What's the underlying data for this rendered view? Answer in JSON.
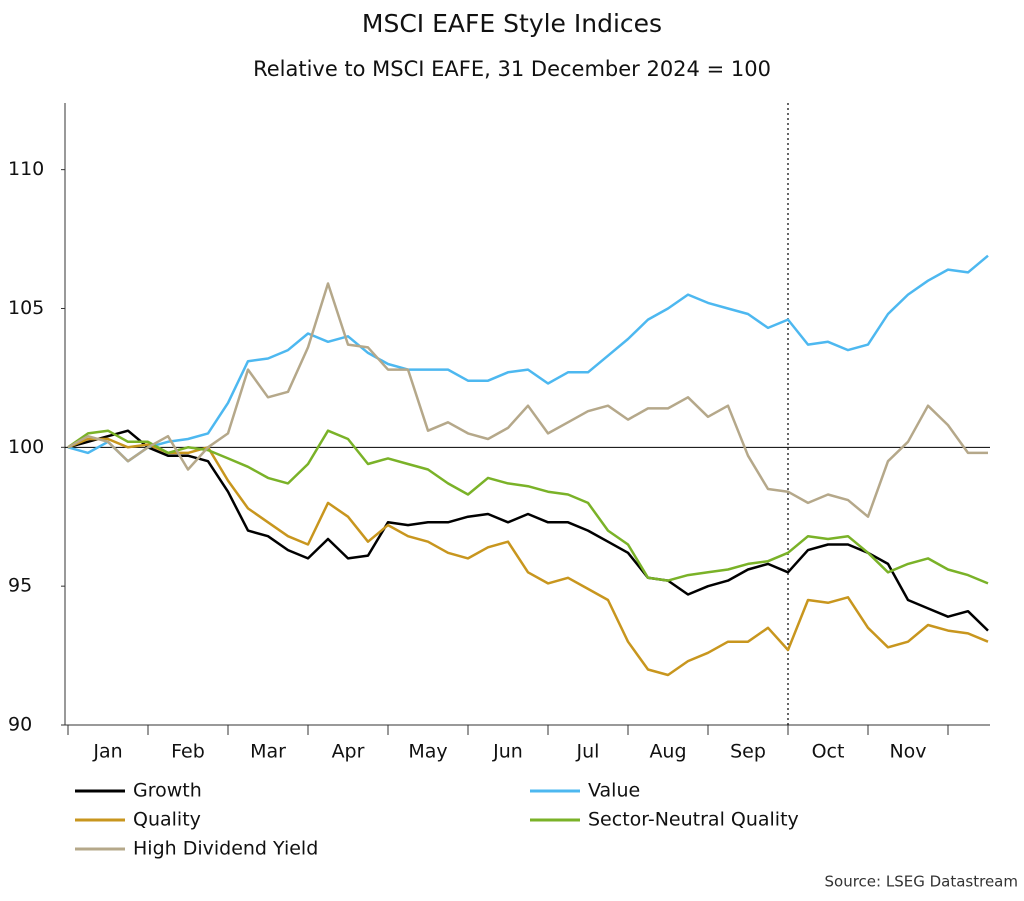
{
  "chart_data": {
    "type": "line",
    "title": "MSCI EAFE Style Indices",
    "subtitle": "Relative to MSCI EAFE, 31 December 2024 = 100",
    "source": "Source: LSEG Datastream",
    "categories": [
      null,
      null,
      "Jan",
      null,
      null,
      null,
      "Feb",
      null,
      null,
      null,
      "Mar",
      null,
      null,
      null,
      "Apr",
      null,
      null,
      null,
      "May",
      null,
      null,
      null,
      "Jun",
      null,
      null,
      null,
      "Jul",
      null,
      null,
      null,
      "Aug",
      null,
      null,
      null,
      "Sep",
      null,
      null,
      null,
      "Oct",
      null,
      null,
      null,
      "Nov",
      null,
      null,
      null,
      null
    ],
    "ylim": [
      90,
      112.4
    ],
    "yticks": [
      90,
      95,
      100,
      105,
      110
    ],
    "reference_line": 100,
    "series": [
      {
        "name": "Growth",
        "color": "#000000",
        "values": [
          100,
          100.2,
          100.4,
          100.6,
          100.0,
          99.7,
          99.7,
          99.5,
          98.4,
          97.0,
          96.8,
          96.3,
          96.0,
          96.7,
          96.0,
          96.1,
          97.3,
          97.2,
          97.3,
          97.3,
          97.5,
          97.6,
          97.3,
          97.6,
          97.3,
          97.3,
          97.0,
          96.6,
          96.2,
          95.3,
          95.2,
          94.7,
          95.0,
          95.2,
          95.6,
          95.8,
          95.5,
          96.3,
          96.5,
          96.5,
          96.2,
          95.8,
          94.5,
          94.2,
          93.9,
          94.1,
          93.4
        ]
      },
      {
        "name": "Value",
        "color": "#4db8f0",
        "values": [
          100,
          99.8,
          100.2,
          99.5,
          100.0,
          100.2,
          100.3,
          100.5,
          101.6,
          103.1,
          103.2,
          103.5,
          104.1,
          103.8,
          104.0,
          103.4,
          103.0,
          102.8,
          102.8,
          102.8,
          102.4,
          102.4,
          102.7,
          102.8,
          102.3,
          102.7,
          102.7,
          103.3,
          103.9,
          104.6,
          105.0,
          105.5,
          105.2,
          105.0,
          104.8,
          104.3,
          104.6,
          103.7,
          103.8,
          103.5,
          103.7,
          104.8,
          105.5,
          106.0,
          106.4,
          106.3,
          106.9
        ]
      },
      {
        "name": "Quality",
        "color": "#c8961e",
        "values": [
          100,
          100.3,
          100.3,
          100.0,
          100.1,
          99.8,
          99.8,
          100.0,
          98.8,
          97.8,
          97.3,
          96.8,
          96.5,
          98.0,
          97.5,
          96.6,
          97.2,
          96.8,
          96.6,
          96.2,
          96.0,
          96.4,
          96.6,
          95.5,
          95.1,
          95.3,
          94.9,
          94.5,
          93.0,
          92.0,
          91.8,
          92.3,
          92.6,
          93.0,
          93.0,
          93.5,
          92.7,
          94.5,
          94.4,
          94.6,
          93.5,
          92.8,
          93.0,
          93.6,
          93.4,
          93.3,
          93.0
        ]
      },
      {
        "name": "Sector-Neutral Quality",
        "color": "#7ab228",
        "values": [
          100,
          100.5,
          100.6,
          100.2,
          100.2,
          99.8,
          100.0,
          99.9,
          99.6,
          99.3,
          98.9,
          98.7,
          99.4,
          100.6,
          100.3,
          99.4,
          99.6,
          99.4,
          99.2,
          98.7,
          98.3,
          98.9,
          98.7,
          98.6,
          98.4,
          98.3,
          98.0,
          97.0,
          96.5,
          95.3,
          95.2,
          95.4,
          95.5,
          95.6,
          95.8,
          95.9,
          96.2,
          96.8,
          96.7,
          96.8,
          96.2,
          95.5,
          95.8,
          96.0,
          95.6,
          95.4,
          95.1
        ]
      },
      {
        "name": "High Dividend Yield",
        "color": "#b5a88a",
        "values": [
          100,
          100.4,
          100.2,
          99.5,
          100.0,
          100.4,
          99.2,
          100.0,
          100.5,
          102.8,
          101.8,
          102.0,
          103.6,
          105.9,
          103.7,
          103.6,
          102.8,
          102.8,
          100.6,
          100.9,
          100.5,
          100.3,
          100.7,
          101.5,
          100.5,
          100.9,
          101.3,
          101.5,
          101.0,
          101.4,
          101.4,
          101.8,
          101.1,
          101.5,
          99.7,
          98.5,
          98.4,
          98.0,
          98.3,
          98.1,
          97.5,
          99.5,
          100.2,
          101.5,
          100.8,
          99.8,
          99.8
        ]
      }
    ]
  }
}
